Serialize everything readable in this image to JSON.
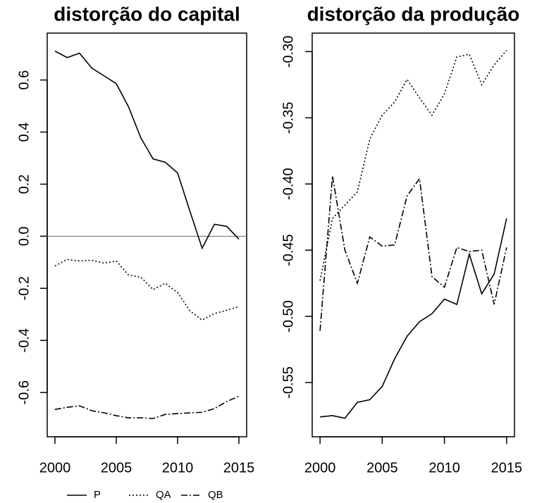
{
  "chart_data": [
    {
      "type": "line",
      "title": "distorção do capital",
      "x": [
        2000,
        2001,
        2002,
        2003,
        2004,
        2005,
        2006,
        2007,
        2008,
        2009,
        2010,
        2011,
        2012,
        2013,
        2014,
        2015
      ],
      "xlim": [
        1999.37,
        2015.63
      ],
      "xticks": [
        2000,
        2005,
        2010,
        2015
      ],
      "ylim": [
        -0.77,
        0.78
      ],
      "yticks": [
        0.6,
        0.4,
        0.2,
        {
          "value": 0,
          "label": "0.0"
        },
        -0.2,
        -0.4,
        -0.6
      ],
      "hline": 0,
      "series": [
        {
          "name": "P",
          "color": "#000000",
          "dash": "solid",
          "values": [
            0.711,
            0.686,
            0.703,
            0.646,
            0.616,
            0.586,
            0.497,
            0.378,
            0.297,
            0.284,
            0.243,
            0.097,
            -0.046,
            0.046,
            0.038,
            -0.011
          ]
        },
        {
          "name": "QA",
          "color": "#000000",
          "dash": "dotted",
          "values": [
            -0.114,
            -0.089,
            -0.095,
            -0.092,
            -0.103,
            -0.095,
            -0.149,
            -0.157,
            -0.205,
            -0.181,
            -0.216,
            -0.286,
            -0.322,
            -0.297,
            -0.284,
            -0.27
          ]
        },
        {
          "name": "QB",
          "color": "#000000",
          "dash": "dashdot",
          "values": [
            -0.665,
            -0.657,
            -0.651,
            -0.67,
            -0.678,
            -0.689,
            -0.697,
            -0.697,
            -0.7,
            -0.684,
            -0.681,
            -0.678,
            -0.676,
            -0.662,
            -0.635,
            -0.614
          ]
        }
      ]
    },
    {
      "type": "line",
      "title": "distorção da produção",
      "x": [
        2000,
        2001,
        2002,
        2003,
        2004,
        2005,
        2006,
        2007,
        2008,
        2009,
        2010,
        2011,
        2012,
        2013,
        2014,
        2015
      ],
      "xlim": [
        1999.37,
        2015.63
      ],
      "xticks": [
        2000,
        2005,
        2010,
        2015
      ],
      "ylim": [
        -0.591,
        -0.286
      ],
      "yticks": [
        {
          "value": -0.3,
          "label": "-0.30"
        },
        {
          "value": -0.35,
          "label": "-0.35"
        },
        {
          "value": -0.4,
          "label": "-0.40"
        },
        {
          "value": -0.45,
          "label": "-0.45"
        },
        {
          "value": -0.5,
          "label": "-0.50"
        },
        {
          "value": -0.55,
          "label": "-0.55"
        }
      ],
      "series": [
        {
          "name": "P",
          "color": "#000000",
          "dash": "solid",
          "values": [
            -0.576,
            -0.575,
            -0.577,
            -0.565,
            -0.563,
            -0.553,
            -0.532,
            -0.515,
            -0.504,
            -0.498,
            -0.487,
            -0.491,
            -0.453,
            -0.483,
            -0.468,
            -0.426
          ]
        },
        {
          "name": "QA",
          "color": "#000000",
          "dash": "dotted",
          "values": [
            -0.473,
            -0.426,
            -0.416,
            -0.406,
            -0.366,
            -0.348,
            -0.338,
            -0.321,
            -0.335,
            -0.348,
            -0.332,
            -0.304,
            -0.302,
            -0.325,
            -0.31,
            -0.299
          ]
        },
        {
          "name": "QB",
          "color": "#000000",
          "dash": "dashdot",
          "values": [
            -0.511,
            -0.394,
            -0.45,
            -0.475,
            -0.44,
            -0.447,
            -0.446,
            -0.409,
            -0.396,
            -0.47,
            -0.478,
            -0.448,
            -0.451,
            -0.45,
            -0.491,
            -0.448
          ]
        }
      ]
    }
  ]
}
